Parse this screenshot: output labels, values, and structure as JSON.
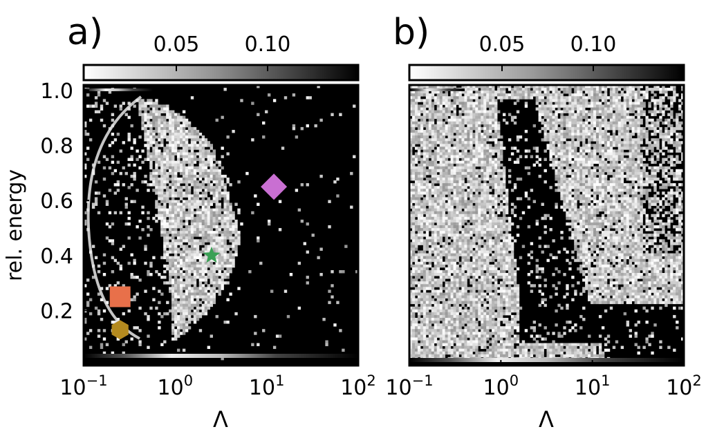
{
  "chart_data": [
    {
      "panel_label": "a)",
      "type": "heatmap",
      "colormap": "gray_r",
      "colorbar_ticks": [
        0.05,
        0.1
      ],
      "colorbar_tick_labels": [
        "0.05",
        "0.10"
      ],
      "xlabel": "Λ",
      "ylabel": "rel. energy",
      "xscale": "log",
      "xlim": [
        0.1,
        100
      ],
      "ylim": [
        0.0,
        1.02
      ],
      "x_tick_labels": [
        {
          "base": "10",
          "exp": "−1"
        },
        {
          "base": "10",
          "exp": "0"
        },
        {
          "base": "10",
          "exp": "1"
        },
        {
          "base": "10",
          "exp": "2"
        }
      ],
      "y_ticks": [
        0.2,
        0.4,
        0.6,
        0.8,
        1.0
      ],
      "y_tick_labels": [
        "0.2",
        "0.4",
        "0.6",
        "0.8",
        "1.0"
      ],
      "markers": [
        {
          "shape": "diamond",
          "color": "#c96fd2",
          "x": 12.0,
          "y": 0.65
        },
        {
          "shape": "star",
          "color": "#3aa055",
          "x": 2.5,
          "y": 0.4
        },
        {
          "shape": "square",
          "color": "#e8704a",
          "x": 0.25,
          "y": 0.25
        },
        {
          "shape": "hexagon",
          "color": "#b48a1f",
          "x": 0.25,
          "y": 0.13
        }
      ]
    },
    {
      "panel_label": "b)",
      "type": "heatmap",
      "colormap": "gray_r",
      "colorbar_ticks": [
        0.05,
        0.1
      ],
      "colorbar_tick_labels": [
        "0.05",
        "0.10"
      ],
      "xlabel": "Λ",
      "xscale": "log",
      "xlim": [
        0.1,
        100
      ],
      "ylim": [
        0.0,
        1.02
      ],
      "x_tick_labels": [
        {
          "base": "10",
          "exp": "−1"
        },
        {
          "base": "10",
          "exp": "0"
        },
        {
          "base": "10",
          "exp": "1"
        },
        {
          "base": "10",
          "exp": "2"
        }
      ],
      "y_ticks": [],
      "y_tick_labels": []
    }
  ]
}
